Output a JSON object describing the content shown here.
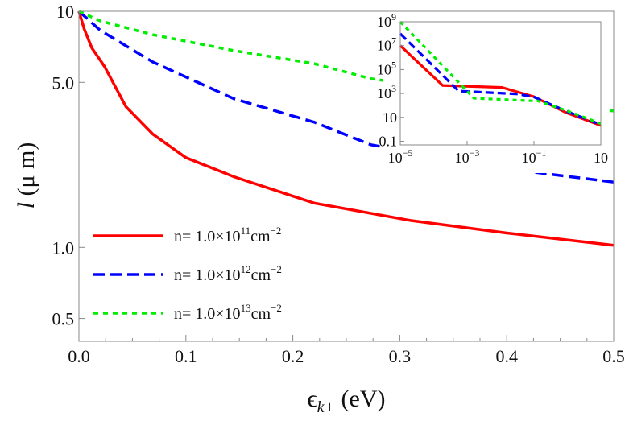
{
  "chart_data": [
    {
      "type": "line",
      "title": "",
      "xlabel": {
        "main": "ϵ",
        "sub": "k+",
        "unit": " (eV)"
      },
      "ylabel": {
        "symbol": "l",
        "unit": " (μ m)"
      },
      "xlim": [
        0,
        0.5
      ],
      "ylim": [
        0.4,
        10
      ],
      "yscale": "log",
      "grid": false,
      "legend_position": "bottom-left",
      "x_ticks": [
        "0.0",
        "0.1",
        "0.2",
        "0.3",
        "0.4",
        "0.5"
      ],
      "x_tick_values": [
        0,
        0.1,
        0.2,
        0.3,
        0.4,
        0.5
      ],
      "y_ticks": [
        "0.5",
        "1.0",
        "5.0",
        "10"
      ],
      "y_tick_values": [
        0.5,
        1.0,
        5.0,
        10
      ],
      "series": [
        {
          "name": {
            "prefix": "n= 1.0×10",
            "exp": "11",
            "unit": "cm",
            "unit_exp": "−2"
          },
          "color": "#ff0000",
          "style": "solid",
          "x": [
            0,
            0.005,
            0.012,
            0.024,
            0.044,
            0.069,
            0.1,
            0.145,
            0.22,
            0.31,
            0.4,
            0.5
          ],
          "y": [
            10,
            8.4,
            7.0,
            5.83,
            3.94,
            3.02,
            2.4,
            1.99,
            1.54,
            1.3,
            1.15,
            1.02
          ]
        },
        {
          "name": {
            "prefix": "n= 1.0×10",
            "exp": "12",
            "unit": "cm",
            "unit_exp": "−2"
          },
          "color": "#0000ff",
          "style": "dashed",
          "x": [
            0,
            0.02,
            0.069,
            0.145,
            0.22,
            0.273,
            0.35,
            0.4,
            0.5
          ],
          "y": [
            10,
            8.3,
            6.1,
            4.26,
            3.39,
            2.72,
            2.35,
            2.15,
            1.89
          ]
        },
        {
          "name": {
            "prefix": "n= 1.0×10",
            "exp": "13",
            "unit": "cm",
            "unit_exp": "−2"
          },
          "color": "#00ee00",
          "style": "dotted",
          "x": [
            0,
            0.02,
            0.069,
            0.145,
            0.22,
            0.273,
            0.4,
            0.5
          ],
          "y": [
            10,
            9.1,
            7.96,
            6.81,
            6.0,
            5.18,
            4.3,
            3.78
          ]
        }
      ]
    },
    {
      "type": "line",
      "title": "",
      "xscale": "log",
      "yscale": "log",
      "xlim": [
        1e-05,
        10
      ],
      "ylim": [
        0.05,
        1000000000.0
      ],
      "x_ticks": [
        {
          "base": "10",
          "exp": "−5"
        },
        {
          "base": "10",
          "exp": "−3"
        },
        {
          "base": "10",
          "exp": "−1"
        },
        {
          "base": "10",
          "exp": ""
        }
      ],
      "x_tick_values": [
        1e-05,
        0.001,
        0.1,
        10
      ],
      "y_ticks": [
        {
          "base": "10",
          "exp": "9"
        },
        {
          "base": "10",
          "exp": "7"
        },
        {
          "base": "10",
          "exp": "5"
        },
        {
          "base": "10",
          "exp": "3"
        },
        {
          "base": "10",
          "exp": ""
        },
        {
          "base": "0.1",
          "exp": ""
        }
      ],
      "y_tick_values": [
        1000000000.0,
        10000000.0,
        100000.0,
        1000.0,
        10,
        0.1
      ],
      "series": [
        {
          "color": "#ff0000",
          "style": "solid",
          "x": [
            1e-05,
            0.000186,
            0.011,
            0.1,
            0.91,
            10
          ],
          "y": [
            10000000.0,
            4700.0,
            3200.0,
            540.0,
            25,
            2.1
          ]
        },
        {
          "color": "#0000ff",
          "style": "dashed",
          "x": [
            1e-05,
            0.00056,
            0.033,
            0.1,
            1,
            10
          ],
          "y": [
            100000000.0,
            1600.0,
            900.0,
            500.0,
            30,
            2.5
          ]
        },
        {
          "color": "#00ee00",
          "style": "dotted",
          "x": [
            1e-05,
            0.0016,
            0.069,
            0.13,
            1,
            10
          ],
          "y": [
            1000000000.0,
            400.0,
            250.0,
            240.0,
            35,
            3.0
          ]
        }
      ]
    }
  ]
}
